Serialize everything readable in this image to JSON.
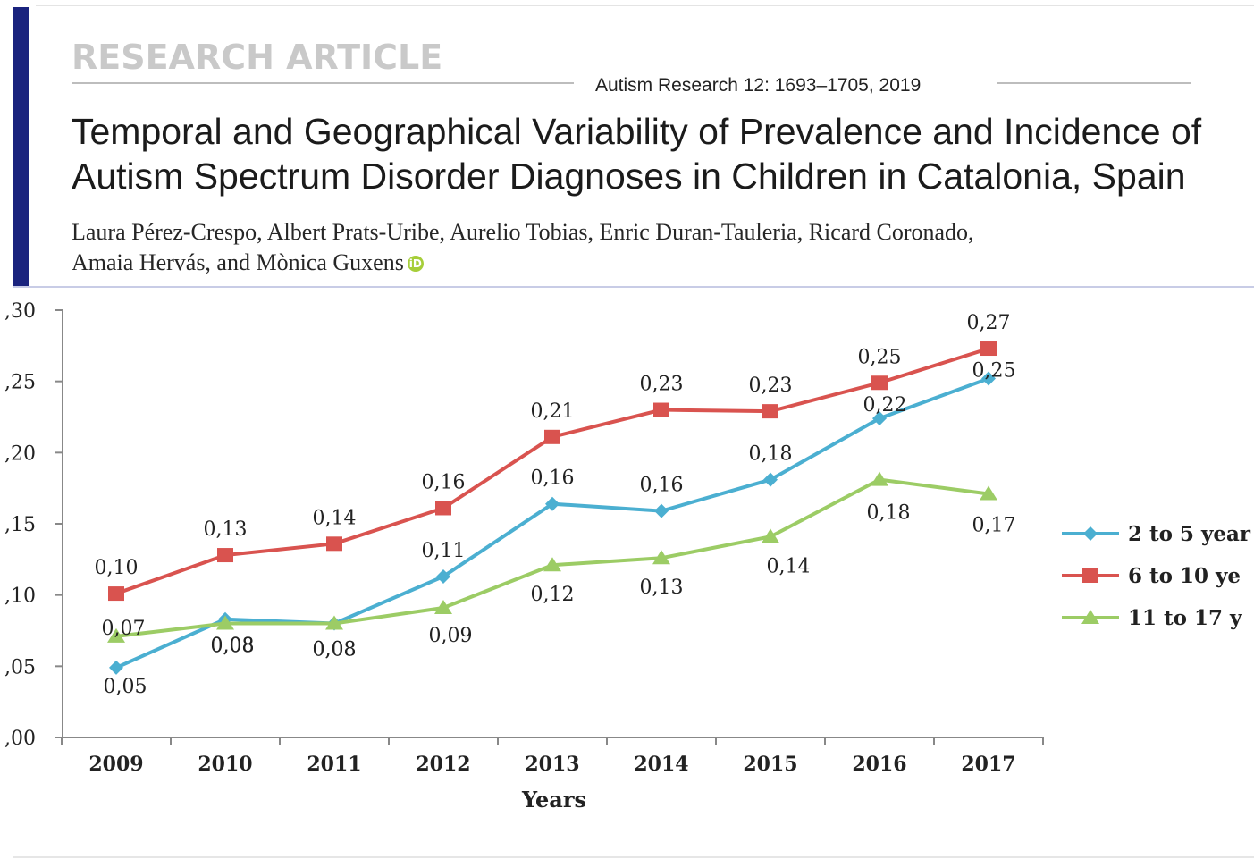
{
  "header": {
    "article_type": "RESEARCH ARTICLE",
    "journal_ref": "Autism Research 12: 1693–1705, 2019",
    "title_line1": "Temporal and Geographical Variability of Prevalence and Incidence of",
    "title_line2": "Autism Spectrum Disorder Diagnoses in Children in Catalonia, Spain",
    "authors_line1": "Laura Pérez-Crespo, Albert Prats-Uribe, Aurelio Tobias, Enric Duran-Tauleria, Ricard Coronado,",
    "authors_line2": "Amaia Hervás, and  Mònica Guxens",
    "orcid_icon": "orcid-icon"
  },
  "chart_data": {
    "type": "line",
    "title": "",
    "xlabel": "Years",
    "ylabel": "",
    "categories": [
      "2009",
      "2010",
      "2011",
      "2012",
      "2013",
      "2014",
      "2015",
      "2016",
      "2017"
    ],
    "ylim": [
      0,
      0.3
    ],
    "yticks": [
      ",30",
      ",25",
      ",20",
      ",15",
      ",10",
      ",05",
      ",00"
    ],
    "ytick_values": [
      0.3,
      0.25,
      0.2,
      0.15,
      0.1,
      0.05,
      0.0
    ],
    "grid": false,
    "legend_position": "right",
    "series": [
      {
        "name": "2 to 5 year",
        "color": "#4bafd1",
        "marker": "diamond",
        "values": [
          0.049,
          0.083,
          0.08,
          0.113,
          0.164,
          0.159,
          0.181,
          0.224,
          0.252
        ],
        "labels": [
          "0,05",
          "0,08",
          "0,08",
          "0,11",
          "0,16",
          "0,16",
          "0,18",
          "0,22",
          "0,25"
        ]
      },
      {
        "name": "6 to 10 ye",
        "color": "#d9534f",
        "marker": "square",
        "values": [
          0.101,
          0.128,
          0.136,
          0.161,
          0.211,
          0.23,
          0.229,
          0.249,
          0.273
        ],
        "labels": [
          "0,10",
          "0,13",
          "0,14",
          "0,16",
          "0,21",
          "0,23",
          "0,23",
          "0,25",
          "0,27"
        ]
      },
      {
        "name": "11 to 17 y",
        "color": "#9ccc65",
        "marker": "triangle",
        "values": [
          0.071,
          0.08,
          0.08,
          0.091,
          0.121,
          0.126,
          0.141,
          0.181,
          0.171
        ],
        "labels": [
          "0,07",
          "0,08",
          "0,08",
          "0,09",
          "0,12",
          "0,13",
          "0,14",
          "0,18",
          "0,17"
        ]
      }
    ]
  }
}
